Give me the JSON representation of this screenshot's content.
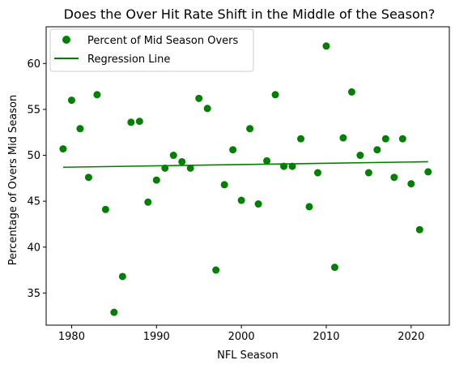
{
  "chart_data": {
    "type": "scatter",
    "title": "Does the Over Hit Rate Shift in the Middle of the Season?",
    "xlabel": "NFL Season",
    "ylabel": "Percentage of Overs Mid Season",
    "xlim": [
      1977,
      2024.5
    ],
    "ylim": [
      31.5,
      64
    ],
    "xticks": [
      1980,
      1990,
      2000,
      2010,
      2020
    ],
    "yticks": [
      35,
      40,
      45,
      50,
      55,
      60
    ],
    "grid": false,
    "legend_position": "top-left",
    "colors": {
      "points": "#008000",
      "line": "#008000"
    },
    "series": [
      {
        "name": "Percent of Mid Season Overs",
        "kind": "scatter",
        "points": [
          {
            "x": 1979,
            "y": 50.7
          },
          {
            "x": 1980,
            "y": 56.0
          },
          {
            "x": 1981,
            "y": 52.9
          },
          {
            "x": 1982,
            "y": 47.6
          },
          {
            "x": 1983,
            "y": 56.6
          },
          {
            "x": 1984,
            "y": 44.1
          },
          {
            "x": 1985,
            "y": 32.9
          },
          {
            "x": 1986,
            "y": 36.8
          },
          {
            "x": 1987,
            "y": 53.6
          },
          {
            "x": 1988,
            "y": 53.7
          },
          {
            "x": 1989,
            "y": 44.9
          },
          {
            "x": 1990,
            "y": 47.3
          },
          {
            "x": 1991,
            "y": 48.6
          },
          {
            "x": 1992,
            "y": 50.0
          },
          {
            "x": 1993,
            "y": 49.3
          },
          {
            "x": 1994,
            "y": 48.6
          },
          {
            "x": 1995,
            "y": 56.2
          },
          {
            "x": 1996,
            "y": 55.1
          },
          {
            "x": 1997,
            "y": 37.5
          },
          {
            "x": 1998,
            "y": 46.8
          },
          {
            "x": 1999,
            "y": 50.6
          },
          {
            "x": 2000,
            "y": 45.1
          },
          {
            "x": 2001,
            "y": 52.9
          },
          {
            "x": 2002,
            "y": 44.7
          },
          {
            "x": 2003,
            "y": 49.4
          },
          {
            "x": 2004,
            "y": 56.6
          },
          {
            "x": 2005,
            "y": 48.8
          },
          {
            "x": 2006,
            "y": 48.8
          },
          {
            "x": 2007,
            "y": 51.8
          },
          {
            "x": 2008,
            "y": 44.4
          },
          {
            "x": 2009,
            "y": 48.1
          },
          {
            "x": 2010,
            "y": 61.9
          },
          {
            "x": 2011,
            "y": 37.8
          },
          {
            "x": 2012,
            "y": 51.9
          },
          {
            "x": 2013,
            "y": 56.9
          },
          {
            "x": 2014,
            "y": 50.0
          },
          {
            "x": 2015,
            "y": 48.1
          },
          {
            "x": 2016,
            "y": 50.6
          },
          {
            "x": 2017,
            "y": 51.8
          },
          {
            "x": 2018,
            "y": 47.6
          },
          {
            "x": 2019,
            "y": 51.8
          },
          {
            "x": 2020,
            "y": 46.9
          },
          {
            "x": 2021,
            "y": 41.9
          },
          {
            "x": 2022,
            "y": 48.2
          }
        ]
      },
      {
        "name": "Regression Line",
        "kind": "line",
        "points": [
          {
            "x": 1979,
            "y": 48.7
          },
          {
            "x": 2022,
            "y": 49.3
          }
        ]
      }
    ]
  }
}
